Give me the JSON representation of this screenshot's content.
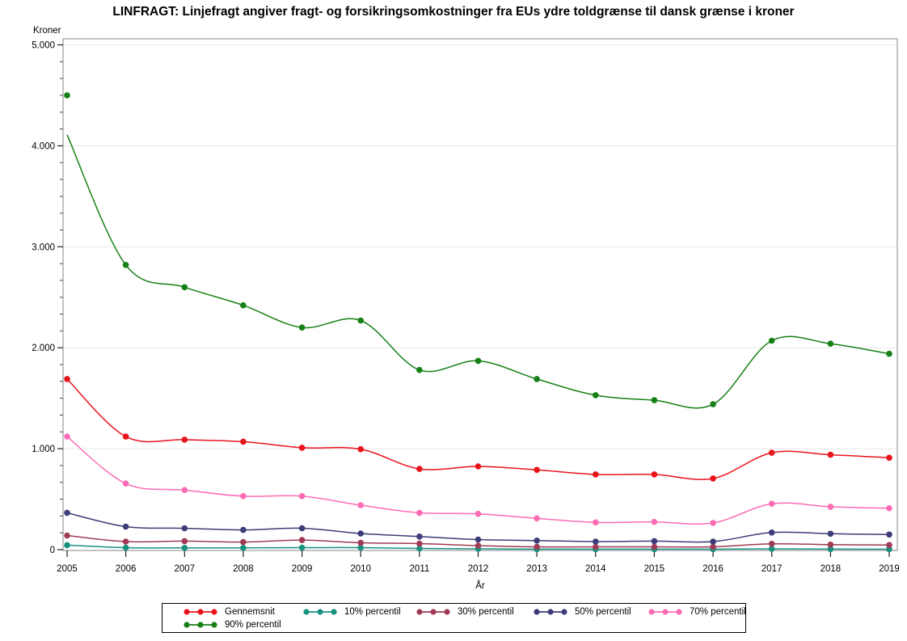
{
  "title": "LINFRAGT: Linjefragt angiver fragt- og forsikringsomkostninger fra EUs ydre toldgrænse til dansk grænse i kroner",
  "chart_data": {
    "type": "line",
    "title": "LINFRAGT: Linjefragt angiver fragt- og forsikringsomkostninger fra EUs ydre toldgrænse til dansk grænse i kroner",
    "xlabel": "År",
    "ylabel": "Kroner",
    "x": [
      2005,
      2006,
      2007,
      2008,
      2009,
      2010,
      2011,
      2012,
      2013,
      2014,
      2015,
      2016,
      2017,
      2018,
      2019
    ],
    "ylim": [
      0,
      5000
    ],
    "y_ticks": [
      0,
      1000,
      2000,
      3000,
      4000,
      5000
    ],
    "y_tick_labels": [
      "0",
      "1.000",
      "2.000",
      "3.000",
      "4.000",
      "5.000"
    ],
    "minor_y_ticks_between_major": 5,
    "grid": "horizontal-major",
    "legend_position": "bottom-box",
    "marker": "filled-circle",
    "interpolation": "smooth-spline",
    "series": [
      {
        "name": "Gennemsnit",
        "color": "#e8141c",
        "values": [
          1690,
          1120,
          1090,
          1070,
          1010,
          995,
          800,
          825,
          790,
          745,
          745,
          705,
          960,
          940,
          910
        ]
      },
      {
        "name": "10% percentil",
        "color": "#18917f",
        "values": [
          45,
          20,
          18,
          18,
          20,
          20,
          12,
          8,
          5,
          5,
          5,
          5,
          8,
          6,
          5
        ]
      },
      {
        "name": "30% percentil",
        "color": "#a03a55",
        "values": [
          140,
          80,
          85,
          75,
          95,
          68,
          60,
          40,
          28,
          28,
          28,
          28,
          58,
          50,
          46
        ]
      },
      {
        "name": "50% percentil",
        "color": "#3c3c78",
        "values": [
          365,
          228,
          212,
          195,
          212,
          160,
          130,
          100,
          90,
          80,
          85,
          80,
          170,
          158,
          150
        ]
      },
      {
        "name": "70% percentil",
        "color": "#fb6cb4",
        "values": [
          1120,
          655,
          590,
          530,
          530,
          440,
          365,
          355,
          310,
          270,
          275,
          265,
          455,
          425,
          410
        ]
      },
      {
        "name": "90% percentil",
        "color": "#168016",
        "values": [
          4500,
          2820,
          2600,
          2420,
          2200,
          2270,
          1780,
          1870,
          1690,
          1530,
          1480,
          1440,
          2070,
          2040,
          1940
        ],
        "line_values": [
          4110,
          2820,
          2600,
          2420,
          2200,
          2270,
          1780,
          1870,
          1690,
          1530,
          1480,
          1440,
          2070,
          2040,
          1940
        ]
      }
    ]
  }
}
